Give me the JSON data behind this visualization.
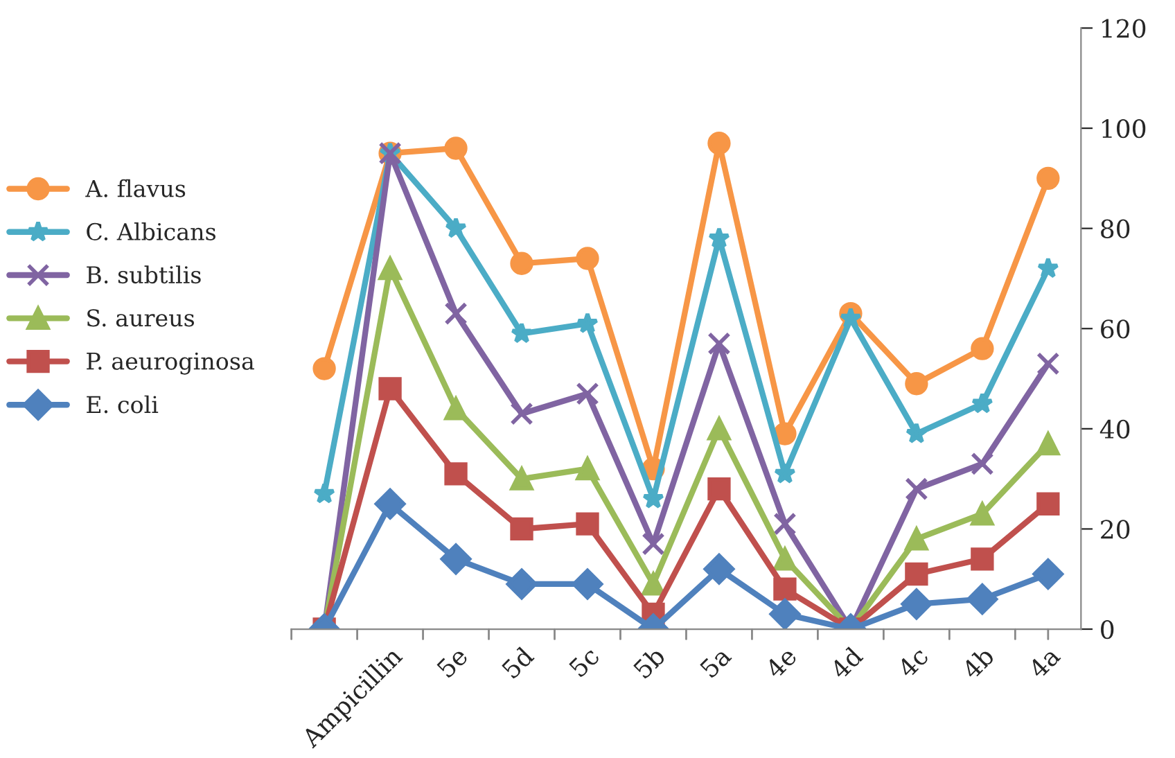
{
  "chart_data": {
    "type": "line",
    "categories": [
      null,
      "Ampicillin",
      "5e",
      "5d",
      "5c",
      "5b",
      "5a",
      "4e",
      "4d",
      "4c",
      "4b",
      "4a"
    ],
    "series": [
      {
        "name": "A. flavus",
        "color": "#f79646",
        "marker": "circle",
        "values": [
          52,
          95,
          96,
          73,
          74,
          32,
          97,
          39,
          63,
          49,
          56,
          90
        ]
      },
      {
        "name": "C. Albicans",
        "color": "#4bacc6",
        "marker": "star",
        "values": [
          27,
          95,
          80,
          59,
          61,
          26,
          78,
          31,
          62,
          39,
          45,
          72
        ]
      },
      {
        "name": "B. subtilis",
        "color": "#8064a2",
        "marker": "cross",
        "values": [
          0,
          95,
          63,
          43,
          47,
          17,
          57,
          21,
          0,
          28,
          33,
          53
        ]
      },
      {
        "name": "S. aureus",
        "color": "#9bbb59",
        "marker": "triangle",
        "values": [
          0,
          72,
          44,
          30,
          32,
          9,
          40,
          14,
          0,
          18,
          23,
          37
        ]
      },
      {
        "name": "P. aeuroginosa",
        "color": "#c0504d",
        "marker": "square",
        "values": [
          0,
          48,
          31,
          20,
          21,
          3,
          28,
          8,
          0,
          11,
          14,
          25
        ]
      },
      {
        "name": "E. coli",
        "color": "#4f81bd",
        "marker": "diamond",
        "values": [
          0,
          25,
          14,
          9,
          9,
          0,
          12,
          3,
          0,
          5,
          6,
          11
        ]
      }
    ],
    "ylim": [
      0,
      120
    ],
    "yticks": [
      0,
      20,
      40,
      60,
      80,
      100,
      120
    ],
    "grid": false,
    "legend": "left",
    "line_style": "solid"
  }
}
